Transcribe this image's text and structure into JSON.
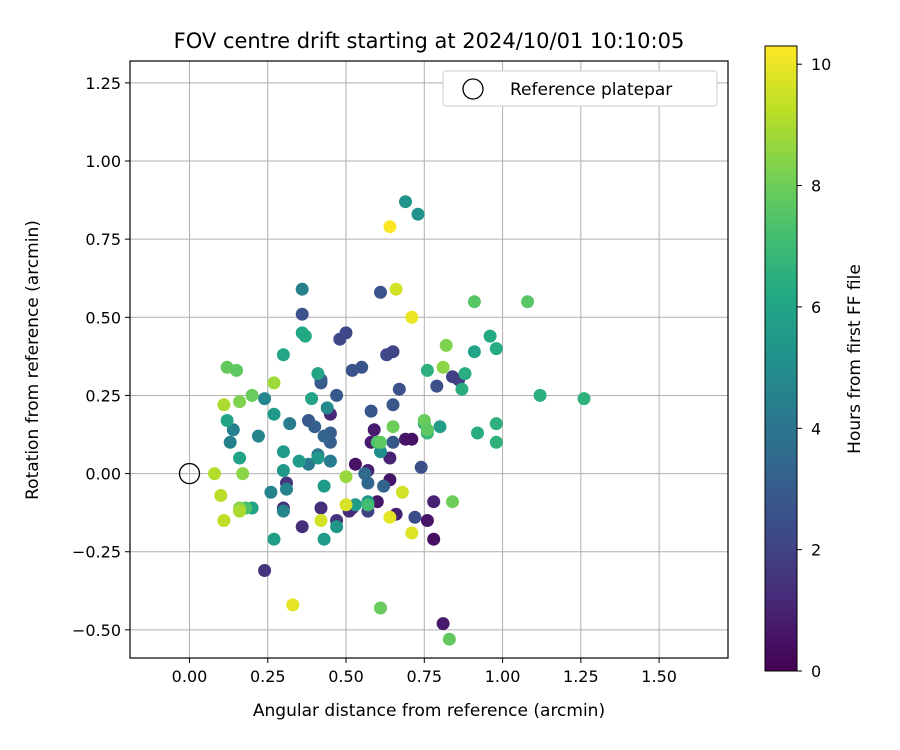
{
  "chart_data": {
    "type": "scatter",
    "title": "FOV centre drift starting at 2024/10/01 10:10:05",
    "xlabel": "Angular distance from reference (arcmin)",
    "ylabel": "Rotation from reference (arcmin)",
    "colorbar_label": "Hours from first FF file",
    "colormap": "viridis",
    "xlim": [
      -0.19,
      1.72
    ],
    "ylim": [
      -0.59,
      1.32
    ],
    "clim": [
      0,
      10.3
    ],
    "xticks": [
      "0.00",
      "0.25",
      "0.50",
      "0.75",
      "1.00",
      "1.25",
      "1.50"
    ],
    "yticks": [
      "−0.50",
      "−0.25",
      "0.00",
      "0.25",
      "0.50",
      "0.75",
      "1.00",
      "1.25"
    ],
    "cticks": [
      "0",
      "2",
      "4",
      "6",
      "8",
      "10"
    ],
    "grid": true,
    "legend": {
      "placement": "top-right",
      "label": "Reference platepar"
    },
    "reference": {
      "x": 0.0,
      "y": 0.0
    },
    "points": [
      [
        0.53,
        0.03,
        0.5
      ],
      [
        0.58,
        0.1,
        0.8
      ],
      [
        0.6,
        -0.09,
        0.7
      ],
      [
        0.57,
        0.01,
        0.9
      ],
      [
        0.52,
        -0.11,
        0.8
      ],
      [
        0.64,
        -0.02,
        0.6
      ],
      [
        0.66,
        -0.13,
        0.9
      ],
      [
        0.69,
        0.11,
        0.6
      ],
      [
        0.71,
        0.11,
        0.5
      ],
      [
        0.78,
        -0.21,
        0.4
      ],
      [
        0.78,
        -0.09,
        1.0
      ],
      [
        0.76,
        -0.15,
        0.6
      ],
      [
        0.81,
        -0.48,
        0.7
      ],
      [
        0.64,
        0.05,
        1.0
      ],
      [
        0.59,
        0.14,
        0.8
      ],
      [
        0.45,
        0.19,
        1.2
      ],
      [
        0.36,
        -0.17,
        1.4
      ],
      [
        0.42,
        -0.11,
        1.4
      ],
      [
        0.51,
        -0.12,
        1.3
      ],
      [
        0.24,
        -0.31,
        1.5
      ],
      [
        0.3,
        -0.11,
        1.5
      ],
      [
        0.31,
        -0.03,
        1.6
      ],
      [
        0.47,
        -0.15,
        1.5
      ],
      [
        0.57,
        -0.12,
        2.0
      ],
      [
        0.48,
        0.43,
        2.2
      ],
      [
        0.5,
        0.45,
        2.2
      ],
      [
        0.36,
        0.51,
        2.6
      ],
      [
        0.61,
        0.58,
        2.6
      ],
      [
        0.63,
        0.38,
        2.2
      ],
      [
        0.65,
        0.39,
        2.1
      ],
      [
        0.84,
        0.31,
        2.0
      ],
      [
        0.86,
        0.3,
        1.9
      ],
      [
        0.79,
        0.28,
        2.5
      ],
      [
        0.72,
        -0.14,
        2.4
      ],
      [
        0.74,
        0.02,
        2.5
      ],
      [
        0.67,
        0.27,
        2.6
      ],
      [
        0.65,
        0.22,
        2.8
      ],
      [
        0.65,
        0.1,
        2.8
      ],
      [
        0.58,
        0.2,
        2.7
      ],
      [
        0.52,
        0.33,
        2.6
      ],
      [
        0.55,
        0.34,
        2.7
      ],
      [
        0.47,
        0.25,
        2.9
      ],
      [
        0.42,
        0.29,
        2.8
      ],
      [
        0.42,
        0.3,
        3.0
      ],
      [
        0.38,
        0.17,
        2.8
      ],
      [
        0.45,
        0.13,
        3.0
      ],
      [
        0.45,
        0.1,
        3.1
      ],
      [
        0.4,
        0.15,
        3.1
      ],
      [
        0.43,
        0.12,
        3.3
      ],
      [
        0.56,
        0.0,
        3.5
      ],
      [
        0.57,
        -0.03,
        3.4
      ],
      [
        0.62,
        -0.04,
        3.3
      ],
      [
        0.41,
        0.06,
        4.1
      ],
      [
        0.38,
        0.03,
        4.2
      ],
      [
        0.45,
        0.04,
        4.3
      ],
      [
        0.36,
        0.59,
        4.5
      ],
      [
        0.32,
        0.16,
        4.3
      ],
      [
        0.31,
        -0.05,
        4.6
      ],
      [
        0.3,
        -0.12,
        4.6
      ],
      [
        0.26,
        -0.06,
        4.6
      ],
      [
        0.24,
        0.24,
        4.7
      ],
      [
        0.22,
        0.12,
        4.6
      ],
      [
        0.14,
        0.14,
        4.4
      ],
      [
        0.13,
        0.1,
        4.5
      ],
      [
        0.44,
        0.21,
        4.9
      ],
      [
        0.69,
        0.87,
        5.3
      ],
      [
        0.73,
        0.83,
        5.2
      ],
      [
        0.61,
        0.07,
        5.1
      ],
      [
        0.57,
        -0.09,
        5.3
      ],
      [
        0.53,
        -0.1,
        5.6
      ],
      [
        0.47,
        -0.17,
        5.4
      ],
      [
        0.43,
        -0.21,
        5.6
      ],
      [
        0.43,
        -0.04,
        5.6
      ],
      [
        0.41,
        0.05,
        5.4
      ],
      [
        0.35,
        0.04,
        5.6
      ],
      [
        0.3,
        0.07,
        5.6
      ],
      [
        0.3,
        0.01,
        5.5
      ],
      [
        0.27,
        -0.21,
        5.7
      ],
      [
        0.27,
        0.19,
        5.5
      ],
      [
        0.2,
        -0.11,
        5.9
      ],
      [
        0.16,
        0.05,
        5.9
      ],
      [
        0.12,
        0.17,
        6.0
      ],
      [
        0.36,
        0.45,
        6.2
      ],
      [
        0.37,
        0.44,
        6.2
      ],
      [
        0.3,
        0.38,
        6.1
      ],
      [
        0.39,
        0.24,
        6.0
      ],
      [
        0.41,
        0.32,
        6.0
      ],
      [
        0.8,
        0.15,
        5.7
      ],
      [
        0.96,
        0.44,
        6.2
      ],
      [
        0.98,
        0.4,
        6.3
      ],
      [
        0.91,
        0.39,
        5.9
      ],
      [
        0.88,
        0.32,
        6.4
      ],
      [
        0.87,
        0.27,
        6.4
      ],
      [
        0.92,
        0.13,
        6.4
      ],
      [
        0.98,
        0.16,
        6.5
      ],
      [
        0.98,
        0.1,
        6.6
      ],
      [
        0.76,
        0.33,
        6.5
      ],
      [
        0.76,
        0.13,
        6.7
      ],
      [
        0.75,
        0.16,
        6.5
      ],
      [
        1.12,
        0.25,
        6.5
      ],
      [
        1.26,
        0.24,
        6.6
      ],
      [
        0.57,
        -0.1,
        7.1
      ],
      [
        0.6,
        0.1,
        7.3
      ],
      [
        0.18,
        -0.11,
        7.3
      ],
      [
        0.91,
        0.55,
        7.6
      ],
      [
        1.08,
        0.55,
        7.6
      ],
      [
        0.75,
        0.17,
        7.9
      ],
      [
        0.76,
        0.14,
        7.7
      ],
      [
        0.65,
        0.15,
        8.0
      ],
      [
        0.61,
        0.1,
        7.7
      ],
      [
        0.61,
        -0.43,
        7.9
      ],
      [
        0.83,
        -0.53,
        7.8
      ],
      [
        0.84,
        -0.09,
        8.0
      ],
      [
        0.2,
        0.25,
        7.9
      ],
      [
        0.15,
        0.33,
        7.7
      ],
      [
        0.16,
        0.23,
        8.3
      ],
      [
        0.12,
        0.34,
        7.8
      ],
      [
        0.81,
        0.34,
        8.5
      ],
      [
        0.82,
        0.41,
        8.3
      ],
      [
        0.5,
        -0.01,
        8.7
      ],
      [
        0.16,
        -0.11,
        8.4
      ],
      [
        0.17,
        0.0,
        8.5
      ],
      [
        0.27,
        0.29,
        8.8
      ],
      [
        0.11,
        0.22,
        9.0
      ],
      [
        0.1,
        -0.07,
        9.2
      ],
      [
        0.11,
        -0.15,
        9.3
      ],
      [
        0.08,
        0.0,
        9.1
      ],
      [
        0.16,
        -0.12,
        9.0
      ],
      [
        0.42,
        -0.15,
        9.6
      ],
      [
        0.5,
        -0.1,
        9.7
      ],
      [
        0.68,
        -0.06,
        9.6
      ],
      [
        0.71,
        -0.19,
        9.8
      ],
      [
        0.64,
        -0.14,
        9.9
      ],
      [
        0.66,
        0.59,
        9.6
      ],
      [
        0.71,
        0.5,
        10.0
      ],
      [
        0.33,
        -0.42,
        9.9
      ],
      [
        0.64,
        0.79,
        10.3
      ]
    ]
  }
}
